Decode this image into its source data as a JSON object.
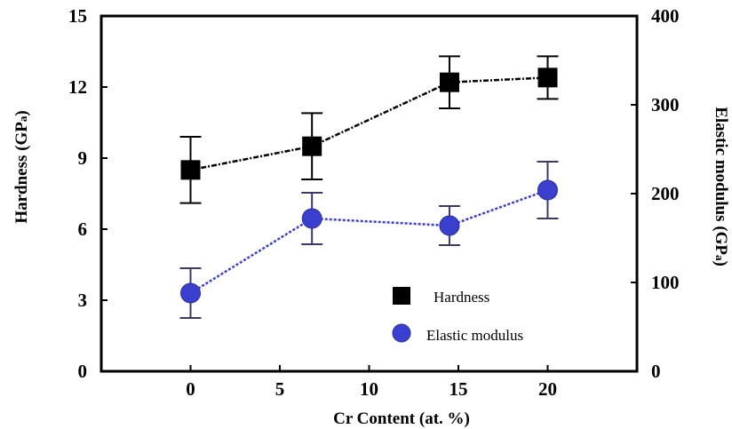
{
  "chart_data": {
    "type": "line",
    "xlabel": "Cr Content (at. %)",
    "ylabel_left_main": "Hardness (GP",
    "ylabel_left_sub": "a",
    "ylabel_left_close": ")",
    "ylabel_right_main": "Elastic modulus (GP",
    "ylabel_right_sub": "a",
    "ylabel_right_close": ")",
    "xlim": [
      -5,
      25
    ],
    "ylim_left": [
      0,
      15
    ],
    "ylim_right": [
      0,
      400
    ],
    "x_ticks": [
      0,
      5,
      10,
      15,
      20
    ],
    "x_tick_labels": [
      "0",
      "5",
      "10",
      "15",
      "20"
    ],
    "y_left_ticks": [
      0,
      3,
      6,
      9,
      12,
      15
    ],
    "y_left_tick_labels": [
      "0",
      "3",
      "6",
      "9",
      "12",
      "15"
    ],
    "y_right_ticks": [
      0,
      100,
      200,
      300,
      400
    ],
    "y_right_tick_labels": [
      "0",
      "100",
      "200",
      "300",
      "400"
    ],
    "grid": false,
    "legend_position": "lower-right",
    "series": [
      {
        "name": "Hardness",
        "axis": "left",
        "marker": "square",
        "color": "#000000",
        "x": [
          0,
          6.8,
          14.5,
          20
        ],
        "y": [
          8.5,
          9.5,
          12.2,
          12.4
        ],
        "err": [
          1.4,
          1.4,
          1.1,
          0.9
        ]
      },
      {
        "name": "Elastic modulus",
        "axis": "right",
        "marker": "circle",
        "color": "#3a3fd0",
        "x": [
          0,
          6.8,
          14.5,
          20
        ],
        "y": [
          88,
          172,
          164,
          204
        ],
        "err": [
          28,
          29,
          22,
          32
        ]
      }
    ]
  }
}
